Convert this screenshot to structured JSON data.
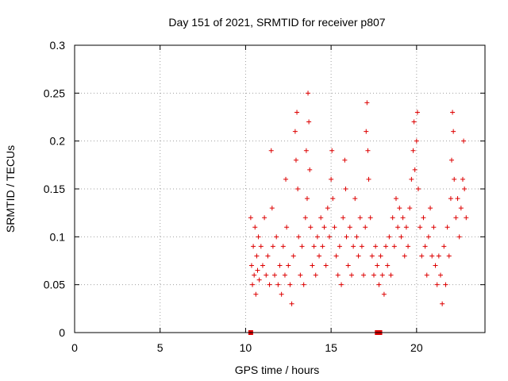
{
  "chart_data": {
    "type": "scatter",
    "title": "Day 151 of 2021, SRMTID for receiver p807",
    "xlabel": "GPS time / hours",
    "ylabel": "SRMTID / TECUs",
    "xlim": [
      0,
      24
    ],
    "ylim": [
      0,
      0.3
    ],
    "xticks": [
      0,
      5,
      10,
      15,
      20
    ],
    "xtick_labels": [
      "0",
      "5",
      "10",
      "15",
      "20"
    ],
    "yticks": [
      0,
      0.05,
      0.1,
      0.15,
      0.2,
      0.25,
      0.3
    ],
    "ytick_labels": [
      "0",
      "0.05",
      "0.1",
      "0.15",
      "0.2",
      "0.25",
      "0.3"
    ],
    "grid": true,
    "marker_color": "#dd0000",
    "series": [
      {
        "name": "SRMTID",
        "marker": "plus",
        "points": [
          [
            10.3,
            0.12
          ],
          [
            10.35,
            0.07
          ],
          [
            10.4,
            0.05
          ],
          [
            10.45,
            0.09
          ],
          [
            10.5,
            0.06
          ],
          [
            10.55,
            0.11
          ],
          [
            10.6,
            0.04
          ],
          [
            10.65,
            0.08
          ],
          [
            10.7,
            0.065
          ],
          [
            10.75,
            0.1
          ],
          [
            10.8,
            0.055
          ],
          [
            10.9,
            0.09
          ],
          [
            11.0,
            0.07
          ],
          [
            11.1,
            0.12
          ],
          [
            11.2,
            0.06
          ],
          [
            11.3,
            0.08
          ],
          [
            11.4,
            0.05
          ],
          [
            11.5,
            0.19
          ],
          [
            11.55,
            0.13
          ],
          [
            11.6,
            0.09
          ],
          [
            11.7,
            0.06
          ],
          [
            11.8,
            0.1
          ],
          [
            11.9,
            0.05
          ],
          [
            12.0,
            0.07
          ],
          [
            12.1,
            0.04
          ],
          [
            12.2,
            0.09
          ],
          [
            12.3,
            0.06
          ],
          [
            12.35,
            0.16
          ],
          [
            12.4,
            0.11
          ],
          [
            12.5,
            0.07
          ],
          [
            12.6,
            0.05
          ],
          [
            12.7,
            0.03
          ],
          [
            12.8,
            0.08
          ],
          [
            12.9,
            0.21
          ],
          [
            12.95,
            0.18
          ],
          [
            13.0,
            0.23
          ],
          [
            13.05,
            0.15
          ],
          [
            13.1,
            0.1
          ],
          [
            13.2,
            0.06
          ],
          [
            13.3,
            0.09
          ],
          [
            13.4,
            0.05
          ],
          [
            13.5,
            0.12
          ],
          [
            13.55,
            0.19
          ],
          [
            13.6,
            0.14
          ],
          [
            13.65,
            0.25
          ],
          [
            13.7,
            0.22
          ],
          [
            13.75,
            0.17
          ],
          [
            13.8,
            0.11
          ],
          [
            13.9,
            0.07
          ],
          [
            14.0,
            0.09
          ],
          [
            14.1,
            0.06
          ],
          [
            14.2,
            0.1
          ],
          [
            14.3,
            0.08
          ],
          [
            14.4,
            0.12
          ],
          [
            14.5,
            0.09
          ],
          [
            14.6,
            0.11
          ],
          [
            14.7,
            0.07
          ],
          [
            14.8,
            0.13
          ],
          [
            14.9,
            0.1
          ],
          [
            15.0,
            0.16
          ],
          [
            15.05,
            0.19
          ],
          [
            15.1,
            0.14
          ],
          [
            15.2,
            0.11
          ],
          [
            15.3,
            0.08
          ],
          [
            15.4,
            0.06
          ],
          [
            15.5,
            0.09
          ],
          [
            15.6,
            0.05
          ],
          [
            15.7,
            0.12
          ],
          [
            15.8,
            0.18
          ],
          [
            15.85,
            0.15
          ],
          [
            15.9,
            0.1
          ],
          [
            16.0,
            0.07
          ],
          [
            16.1,
            0.11
          ],
          [
            16.2,
            0.06
          ],
          [
            16.3,
            0.09
          ],
          [
            16.4,
            0.14
          ],
          [
            16.5,
            0.1
          ],
          [
            16.6,
            0.08
          ],
          [
            16.7,
            0.12
          ],
          [
            16.8,
            0.09
          ],
          [
            16.9,
            0.06
          ],
          [
            17.0,
            0.11
          ],
          [
            17.05,
            0.21
          ],
          [
            17.1,
            0.24
          ],
          [
            17.15,
            0.19
          ],
          [
            17.2,
            0.16
          ],
          [
            17.3,
            0.12
          ],
          [
            17.4,
            0.08
          ],
          [
            17.5,
            0.06
          ],
          [
            17.6,
            0.09
          ],
          [
            17.7,
            0.07
          ],
          [
            17.8,
            0.05
          ],
          [
            17.9,
            0.08
          ],
          [
            18.0,
            0.06
          ],
          [
            18.1,
            0.04
          ],
          [
            18.2,
            0.09
          ],
          [
            18.3,
            0.07
          ],
          [
            18.4,
            0.1
          ],
          [
            18.5,
            0.06
          ],
          [
            18.6,
            0.12
          ],
          [
            18.7,
            0.09
          ],
          [
            18.8,
            0.14
          ],
          [
            18.9,
            0.11
          ],
          [
            19.0,
            0.13
          ],
          [
            19.1,
            0.1
          ],
          [
            19.2,
            0.12
          ],
          [
            19.3,
            0.08
          ],
          [
            19.4,
            0.11
          ],
          [
            19.5,
            0.09
          ],
          [
            19.6,
            0.13
          ],
          [
            19.7,
            0.16
          ],
          [
            19.8,
            0.19
          ],
          [
            19.85,
            0.22
          ],
          [
            19.9,
            0.17
          ],
          [
            20.0,
            0.2
          ],
          [
            20.05,
            0.23
          ],
          [
            20.1,
            0.15
          ],
          [
            20.2,
            0.11
          ],
          [
            20.3,
            0.08
          ],
          [
            20.4,
            0.12
          ],
          [
            20.5,
            0.09
          ],
          [
            20.6,
            0.06
          ],
          [
            20.7,
            0.1
          ],
          [
            20.8,
            0.13
          ],
          [
            20.9,
            0.08
          ],
          [
            21.0,
            0.11
          ],
          [
            21.1,
            0.07
          ],
          [
            21.2,
            0.05
          ],
          [
            21.3,
            0.08
          ],
          [
            21.4,
            0.06
          ],
          [
            21.5,
            0.03
          ],
          [
            21.6,
            0.09
          ],
          [
            21.7,
            0.05
          ],
          [
            21.8,
            0.11
          ],
          [
            21.9,
            0.08
          ],
          [
            22.0,
            0.14
          ],
          [
            22.05,
            0.18
          ],
          [
            22.1,
            0.23
          ],
          [
            22.15,
            0.21
          ],
          [
            22.2,
            0.16
          ],
          [
            22.3,
            0.12
          ],
          [
            22.4,
            0.14
          ],
          [
            22.5,
            0.1
          ],
          [
            22.6,
            0.13
          ],
          [
            22.7,
            0.16
          ],
          [
            22.75,
            0.2
          ],
          [
            22.8,
            0.15
          ],
          [
            22.9,
            0.12
          ]
        ]
      }
    ],
    "baseline_markers": [
      10.3,
      17.7,
      17.85
    ]
  }
}
